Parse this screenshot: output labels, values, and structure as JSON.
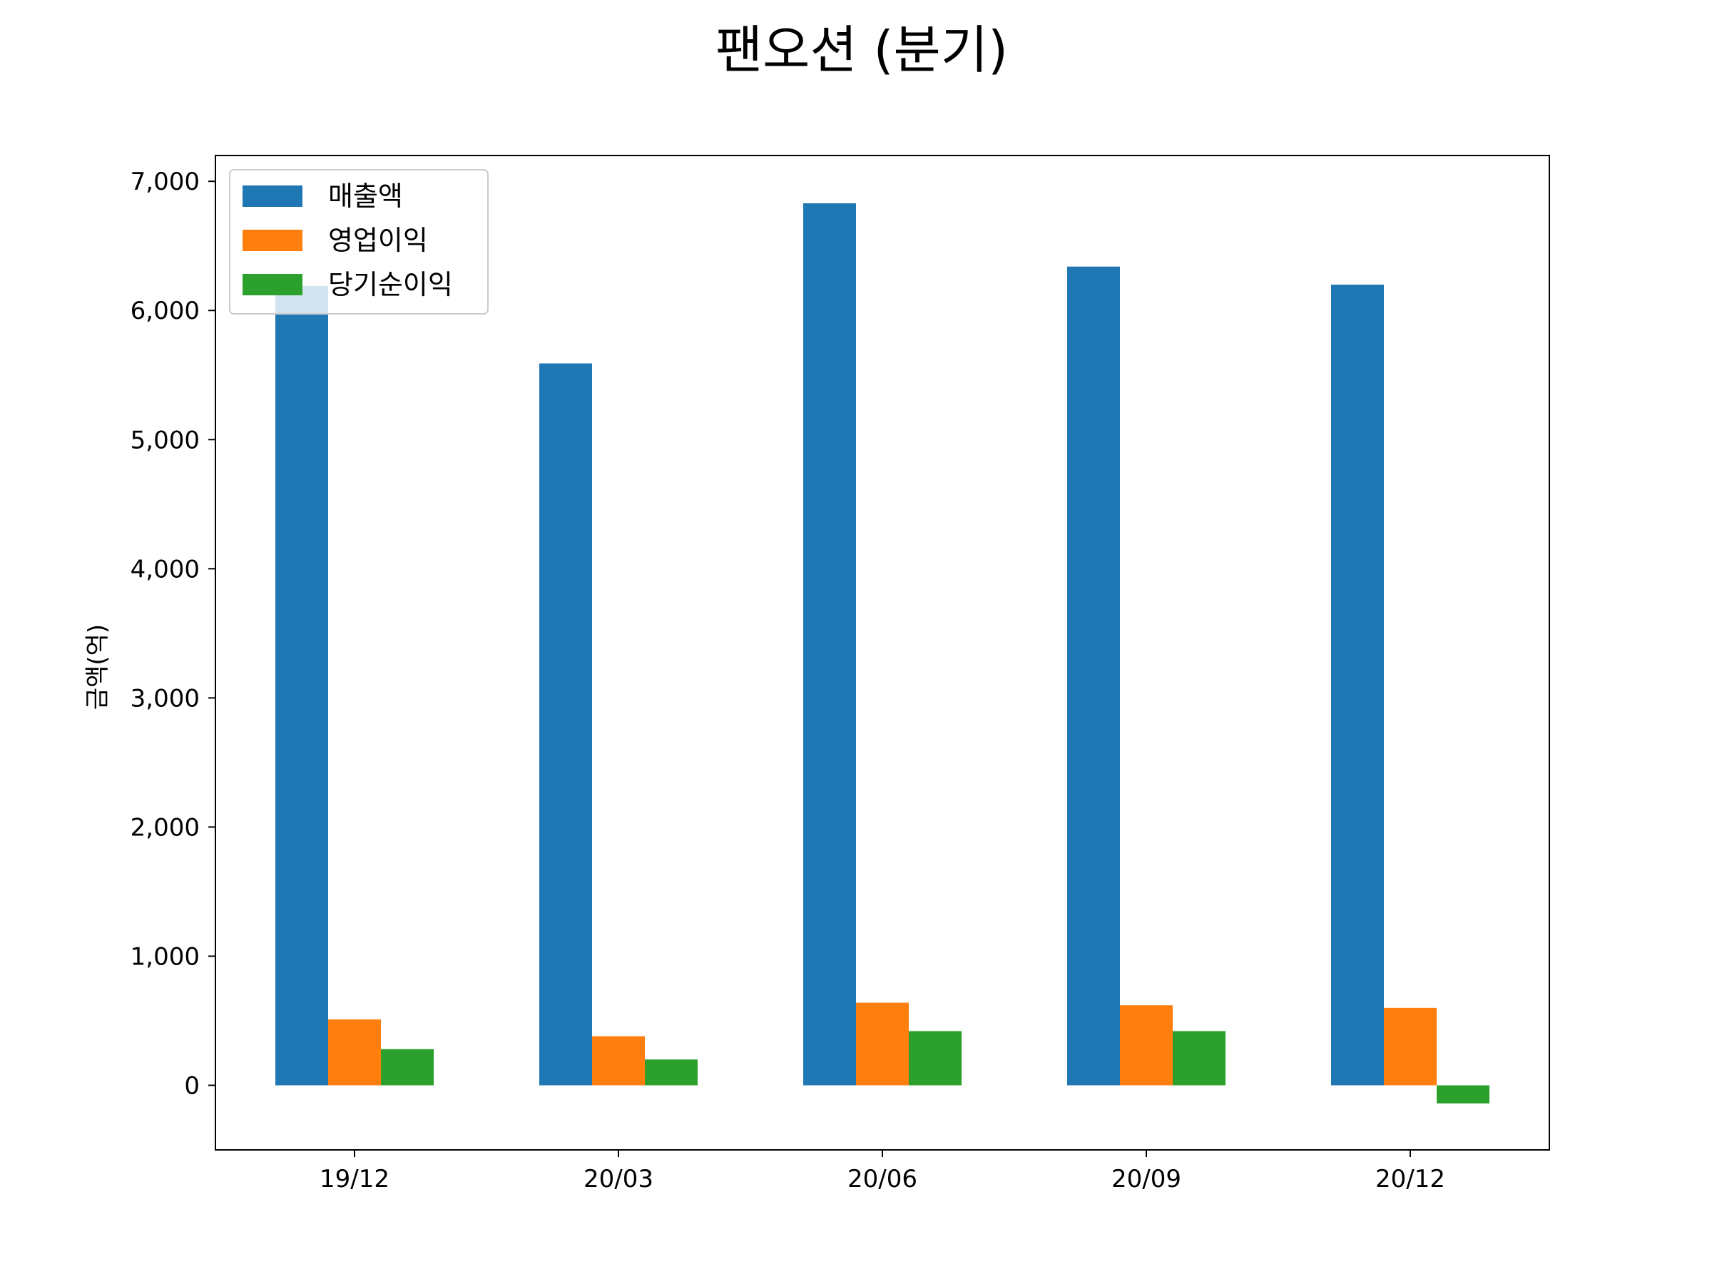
{
  "chart_data": {
    "type": "bar",
    "title": "팬오션 (분기)",
    "xlabel": "",
    "ylabel": "금액(억)",
    "categories": [
      "19/12",
      "20/03",
      "20/06",
      "20/09",
      "20/12"
    ],
    "series": [
      {
        "name": "매출액",
        "color": "#1f77b4",
        "values": [
          6190,
          5590,
          6830,
          6340,
          6200
        ]
      },
      {
        "name": "영업이익",
        "color": "#ff7f0e",
        "values": [
          510,
          380,
          640,
          620,
          600
        ]
      },
      {
        "name": "당기순이익",
        "color": "#2ca02c",
        "values": [
          280,
          200,
          420,
          420,
          -140
        ]
      }
    ],
    "ylim": [
      -500,
      7200
    ],
    "yticks": [
      0,
      1000,
      2000,
      3000,
      4000,
      5000,
      6000,
      7000
    ],
    "ytick_labels": [
      "0",
      "1,000",
      "2,000",
      "3,000",
      "4,000",
      "5,000",
      "6,000",
      "7,000"
    ],
    "grid": false,
    "legend_position": "upper-left"
  }
}
